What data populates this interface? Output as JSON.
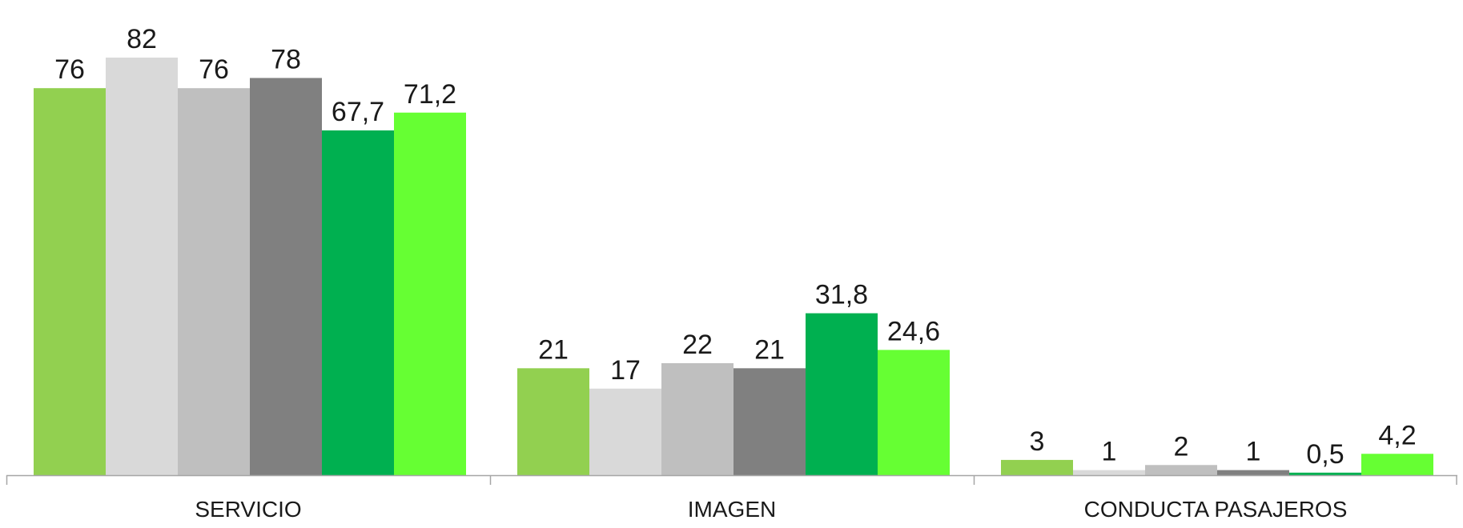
{
  "chart_data": {
    "type": "bar",
    "title": "",
    "xlabel": "",
    "ylabel": "",
    "categories": [
      "SERVICIO",
      "IMAGEN",
      "CONDUCTA PASAJEROS"
    ],
    "series": [
      {
        "values": [
          76,
          21,
          3
        ],
        "labels": [
          "76",
          "21",
          "3"
        ],
        "color": "#92d050"
      },
      {
        "values": [
          82,
          17,
          1
        ],
        "labels": [
          "82",
          "17",
          "1"
        ],
        "color": "#d9d9d9"
      },
      {
        "values": [
          76,
          22,
          2
        ],
        "labels": [
          "76",
          "22",
          "2"
        ],
        "color": "#bfbfbf"
      },
      {
        "values": [
          78,
          21,
          1
        ],
        "labels": [
          "78",
          "21",
          "1"
        ],
        "color": "#808080"
      },
      {
        "values": [
          67.7,
          31.8,
          0.5
        ],
        "labels": [
          "67,7",
          "31,8",
          "0,5"
        ],
        "color": "#00b050"
      },
      {
        "values": [
          71.2,
          24.6,
          4.2
        ],
        "labels": [
          "71,2",
          "24,6",
          "4,2"
        ],
        "color": "#66ff33"
      }
    ],
    "ylim": [
      0,
      82
    ],
    "grid": false,
    "legend": "none",
    "data_labels": true
  }
}
